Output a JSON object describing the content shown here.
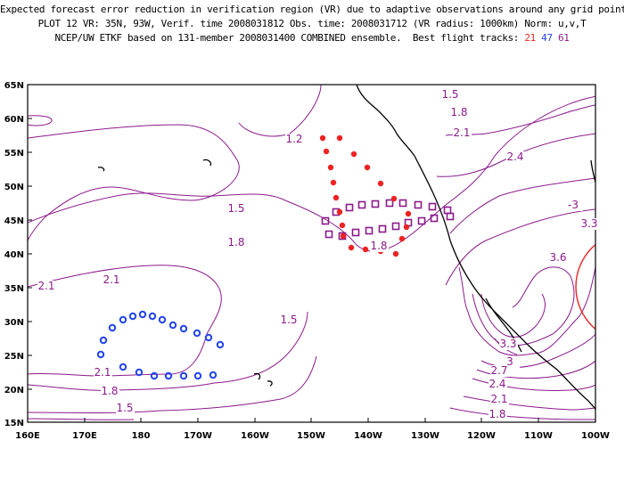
{
  "title": {
    "line1": "Expected forecast error reduction in verification region (VR) due to adaptive observations around any grid point.",
    "line2": "PLOT 12 VR: 35N, 93W, Verif. time 2008031812 Obs. time: 2008031712 (VR radius: 1000km) Norm: u,v,T",
    "line3_prefix": "NCEP/UW ETKF based on 131-member 2008031400 COMBINED ensemble.  Best flight tracks:",
    "tracks": [
      {
        "label": "21",
        "color": "#ee2222"
      },
      {
        "label": "47",
        "color": "#2244ee"
      },
      {
        "label": "61",
        "color": "#8b1a8b"
      }
    ]
  },
  "axes": {
    "lat_labels": [
      "65N",
      "60N",
      "55N",
      "50N",
      "45N",
      "40N",
      "35N",
      "30N",
      "25N",
      "20N",
      "15N"
    ],
    "lon_labels": [
      "160E",
      "170E",
      "180",
      "170W",
      "160W",
      "150W",
      "140W",
      "130W",
      "120W",
      "110W",
      "100W"
    ]
  },
  "contour_labels": [
    {
      "text": "1.5",
      "color": "#8b1a8b"
    },
    {
      "text": "1.8",
      "color": "#8b1a8b"
    },
    {
      "text": "1.2",
      "color": "#8b1a8b"
    },
    {
      "text": "2.1",
      "color": "#8b1a8b"
    },
    {
      "text": "2.4",
      "color": "#8b1a8b"
    },
    {
      "text": "1.5",
      "color": "#8b1a8b"
    },
    {
      "text": "1.8",
      "color": "#8b1a8b"
    },
    {
      "text": "-3",
      "color": "#8b1a8b"
    },
    {
      "text": "3.3",
      "color": "#8b1a8b"
    },
    {
      "text": "1.8",
      "color": "#8b1a8b"
    },
    {
      "text": "3.6",
      "color": "#8b1a8b"
    },
    {
      "text": "2.1",
      "color": "#8b1a8b"
    },
    {
      "text": "2.1",
      "color": "#8b1a8b"
    },
    {
      "text": "1.5",
      "color": "#8b1a8b"
    },
    {
      "text": "3.3",
      "color": "#8b1a8b"
    },
    {
      "text": "3",
      "color": "#8b1a8b"
    },
    {
      "text": "2.1",
      "color": "#8b1a8b"
    },
    {
      "text": "2.7",
      "color": "#8b1a8b"
    },
    {
      "text": "1.8",
      "color": "#8b1a8b"
    },
    {
      "text": "2.4",
      "color": "#8b1a8b"
    },
    {
      "text": "2.1",
      "color": "#8b1a8b"
    },
    {
      "text": "1.5",
      "color": "#8b1a8b"
    },
    {
      "text": "1.8",
      "color": "#8b1a8b"
    }
  ],
  "colors": {
    "contour": "#8b1a8b",
    "track_21": "#ee2222",
    "track_47": "#2244ee",
    "track_61": "#8b1a8b",
    "verification_region": "#ee2222",
    "coast": "#000000"
  }
}
